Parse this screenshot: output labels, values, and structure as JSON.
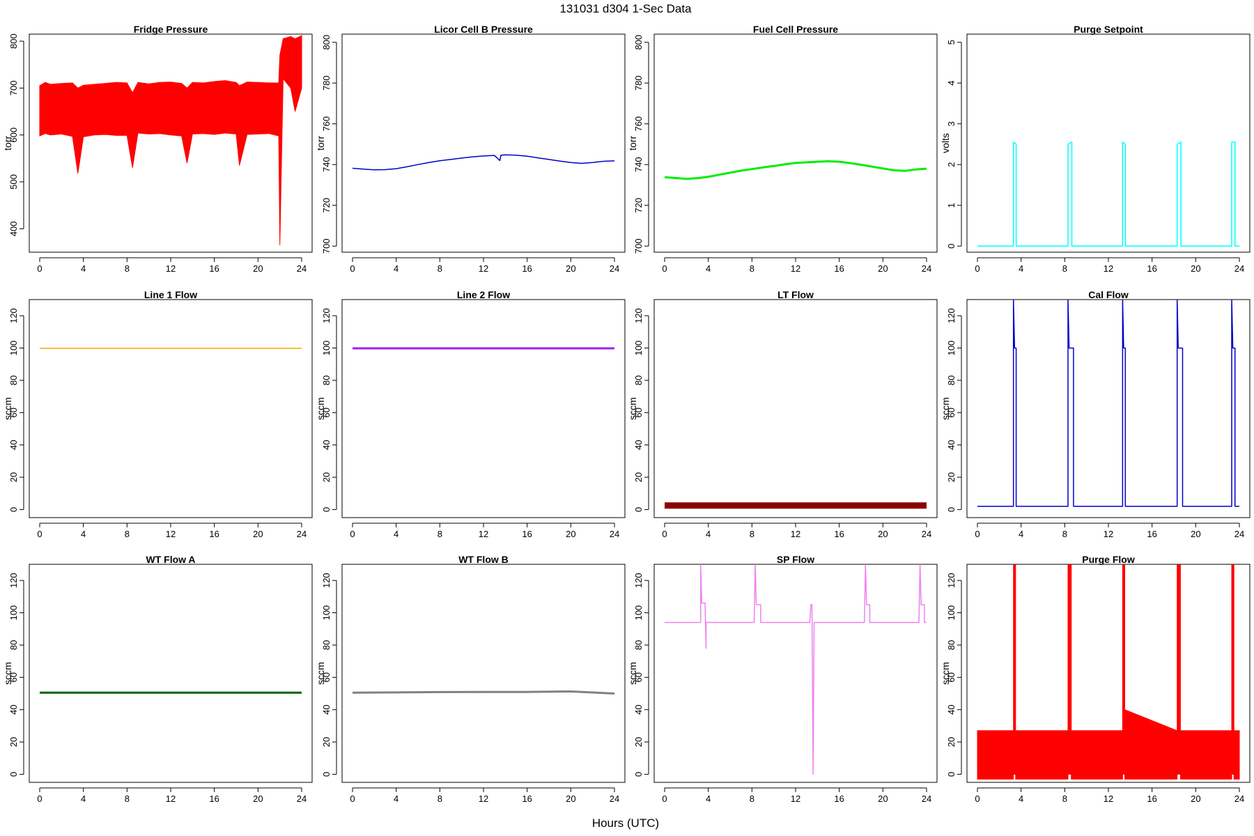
{
  "figure": {
    "title": "131031    d304    1-Sec Data",
    "xlabel": "Hours (UTC)"
  },
  "chart_data": [
    {
      "type": "line",
      "title": "Fridge Pressure",
      "ylabel": "torr",
      "color": "#ff0000",
      "xlim": [
        0,
        24
      ],
      "ylim": [
        350,
        815
      ],
      "xticks": [
        0,
        4,
        8,
        12,
        16,
        20,
        24
      ],
      "yticks": [
        400,
        500,
        600,
        700,
        800
      ],
      "x": [
        0,
        0.5,
        1,
        2,
        3,
        3.5,
        4,
        5,
        6,
        7,
        8,
        8.5,
        9,
        10,
        11,
        12,
        13,
        13.5,
        14,
        15,
        16,
        17,
        18,
        18.3,
        19,
        20,
        21,
        21.9,
        22.0,
        22.3,
        23,
        23.4,
        24
      ],
      "y": [
        598,
        603,
        600,
        602,
        597,
        518,
        596,
        600,
        601,
        599,
        599,
        530,
        604,
        602,
        603,
        600,
        598,
        540,
        602,
        603,
        601,
        604,
        602,
        535,
        601,
        602,
        603,
        598,
        365,
        720,
        700,
        650,
        700
      ],
      "y2": [
        705,
        712,
        708,
        710,
        711,
        700,
        706,
        708,
        710,
        712,
        711,
        690,
        712,
        709,
        712,
        713,
        710,
        700,
        712,
        711,
        714,
        716,
        712,
        705,
        713,
        712,
        711,
        711,
        770,
        805,
        810,
        805,
        812
      ]
    },
    {
      "type": "line",
      "title": "Licor Cell B Pressure",
      "ylabel": "torr",
      "color": "#0000cc",
      "xlim": [
        0,
        24
      ],
      "ylim": [
        697,
        804
      ],
      "xticks": [
        0,
        4,
        8,
        12,
        16,
        20,
        24
      ],
      "yticks": [
        700,
        720,
        740,
        760,
        780,
        800
      ],
      "x": [
        0,
        1,
        2,
        3,
        4,
        5,
        6,
        7,
        8,
        9,
        10,
        11,
        12,
        13,
        13.5,
        13.6,
        14,
        15,
        16,
        17,
        18,
        19,
        20,
        21,
        22,
        23,
        24
      ],
      "y": [
        738.2,
        737.8,
        737.4,
        737.5,
        738.0,
        738.9,
        740.0,
        741.0,
        741.9,
        742.5,
        743.2,
        743.8,
        744.2,
        744.5,
        742.0,
        744.6,
        744.8,
        744.6,
        744.1,
        743.3,
        742.5,
        741.7,
        741.0,
        740.6,
        741.0,
        741.6,
        741.8
      ]
    },
    {
      "type": "line",
      "title": "Fuel Cell Pressure",
      "ylabel": "torr",
      "color": "#00ee00",
      "xlim": [
        0,
        24
      ],
      "ylim": [
        697,
        804
      ],
      "xticks": [
        0,
        4,
        8,
        12,
        16,
        20,
        24
      ],
      "yticks": [
        700,
        720,
        740,
        760,
        780,
        800
      ],
      "x": [
        0,
        1,
        2,
        3,
        4,
        5,
        6,
        7,
        8,
        9,
        10,
        11,
        12,
        13,
        14,
        15,
        16,
        17,
        18,
        19,
        20,
        21,
        22,
        23,
        24
      ],
      "y": [
        733.8,
        733.4,
        733.0,
        733.3,
        734.0,
        735.0,
        736.0,
        737.0,
        737.8,
        738.6,
        739.3,
        740.1,
        740.8,
        741.1,
        741.4,
        741.6,
        741.4,
        740.7,
        739.9,
        739.0,
        738.1,
        737.2,
        736.9,
        737.6,
        738.0
      ]
    },
    {
      "type": "line",
      "title": "Purge Setpoint",
      "ylabel": "volts",
      "color": "#00ffff",
      "xlim": [
        0,
        24
      ],
      "ylim": [
        -0.15,
        5.2
      ],
      "xticks": [
        0,
        4,
        8,
        12,
        16,
        20,
        24
      ],
      "yticks": [
        0,
        1,
        2,
        3,
        4,
        5
      ],
      "x": [
        0,
        3.3,
        3.3,
        3.55,
        3.55,
        8.3,
        8.3,
        8.65,
        8.65,
        13.3,
        13.3,
        13.55,
        13.55,
        18.3,
        18.3,
        18.65,
        18.65,
        23.3,
        23.3,
        23.6,
        23.6,
        24
      ],
      "y": [
        0,
        0,
        2.55,
        2.5,
        0,
        0,
        2.5,
        2.55,
        0,
        0,
        2.55,
        2.5,
        0,
        0,
        2.5,
        2.55,
        0,
        0,
        2.55,
        2.55,
        0,
        0
      ]
    },
    {
      "type": "line",
      "title": "Line 1 Flow",
      "ylabel": "sccm",
      "color": "#ffa500",
      "xlim": [
        0,
        24
      ],
      "ylim": [
        -5,
        130
      ],
      "xticks": [
        0,
        4,
        8,
        12,
        16,
        20,
        24
      ],
      "yticks": [
        0,
        20,
        40,
        60,
        80,
        100,
        120
      ],
      "x": [
        0,
        24
      ],
      "y": [
        99.8,
        99.8
      ]
    },
    {
      "type": "line",
      "title": "Line 2 Flow",
      "ylabel": "sccm",
      "color": "#a020f0",
      "xlim": [
        0,
        24
      ],
      "ylim": [
        -5,
        130
      ],
      "xticks": [
        0,
        4,
        8,
        12,
        16,
        20,
        24
      ],
      "yticks": [
        0,
        20,
        40,
        60,
        80,
        100,
        120
      ],
      "x": [
        0,
        24
      ],
      "y": [
        99.8,
        99.8
      ]
    },
    {
      "type": "line",
      "title": "LT Flow",
      "ylabel": "sccm",
      "color": "#8b0000",
      "xlim": [
        0,
        24
      ],
      "ylim": [
        -5,
        130
      ],
      "xticks": [
        0,
        4,
        8,
        12,
        16,
        20,
        24
      ],
      "yticks": [
        0,
        20,
        40,
        60,
        80,
        100,
        120
      ],
      "x": [
        0,
        24
      ],
      "y": [
        2.5,
        2.5
      ]
    },
    {
      "type": "line",
      "title": "Cal Flow",
      "ylabel": "sccm",
      "color": "#0000cc",
      "xlim": [
        0,
        24
      ],
      "ylim": [
        -5,
        130
      ],
      "xticks": [
        0,
        4,
        8,
        12,
        16,
        20,
        24
      ],
      "yticks": [
        0,
        20,
        40,
        60,
        80,
        100,
        120
      ],
      "x": [
        0,
        3.3,
        3.3,
        3.4,
        3.4,
        3.55,
        3.55,
        8.3,
        8.3,
        8.4,
        8.4,
        8.8,
        8.8,
        13.3,
        13.3,
        13.4,
        13.4,
        13.55,
        13.55,
        18.3,
        18.3,
        18.4,
        18.4,
        18.8,
        18.8,
        23.3,
        23.3,
        23.4,
        23.4,
        23.6,
        23.6,
        24
      ],
      "y": [
        2,
        2,
        130,
        100,
        100,
        100,
        2,
        2,
        130,
        100,
        100,
        100,
        2,
        2,
        130,
        100,
        100,
        100,
        2,
        2,
        130,
        100,
        100,
        100,
        2,
        2,
        130,
        100,
        100,
        100,
        2,
        2
      ]
    },
    {
      "type": "line",
      "title": "WT Flow A",
      "ylabel": "sccm",
      "color": "#006400",
      "xlim": [
        0,
        24
      ],
      "ylim": [
        -5,
        130
      ],
      "xticks": [
        0,
        4,
        8,
        12,
        16,
        20,
        24
      ],
      "yticks": [
        0,
        20,
        40,
        60,
        80,
        100,
        120
      ],
      "x": [
        0,
        24
      ],
      "y": [
        50.5,
        50.5
      ]
    },
    {
      "type": "line",
      "title": "WT Flow B",
      "ylabel": "sccm",
      "color": "#808080",
      "xlim": [
        0,
        24
      ],
      "ylim": [
        -5,
        130
      ],
      "xticks": [
        0,
        4,
        8,
        12,
        16,
        20,
        24
      ],
      "yticks": [
        0,
        20,
        40,
        60,
        80,
        100,
        120
      ],
      "x": [
        0,
        4,
        8,
        12,
        16,
        20,
        24
      ],
      "y": [
        50.5,
        50.7,
        50.9,
        51.0,
        51.0,
        51.3,
        50.0
      ]
    },
    {
      "type": "line",
      "title": "SP Flow",
      "ylabel": "sccm",
      "color": "#ee82ee",
      "xlim": [
        0,
        24
      ],
      "ylim": [
        -5,
        130
      ],
      "xticks": [
        0,
        4,
        8,
        12,
        16,
        20,
        24
      ],
      "yticks": [
        0,
        20,
        40,
        60,
        80,
        100,
        120
      ],
      "x": [
        0,
        3.3,
        3.3,
        3.4,
        3.7,
        3.8,
        3.8,
        8.2,
        8.3,
        8.4,
        8.8,
        8.8,
        13.3,
        13.4,
        13.5,
        13.6,
        13.7,
        13.7,
        18.3,
        18.4,
        18.5,
        18.8,
        18.8,
        23.3,
        23.4,
        23.5,
        23.8,
        23.8,
        24
      ],
      "y": [
        94,
        94,
        130,
        106,
        106,
        78,
        94,
        94,
        130,
        105,
        105,
        94,
        94,
        105,
        105,
        0,
        94,
        94,
        94,
        130,
        105,
        105,
        94,
        94,
        130,
        105,
        105,
        94,
        94
      ]
    },
    {
      "type": "line",
      "title": "Purge Flow",
      "ylabel": "sccm",
      "color": "#ff0000",
      "xlim": [
        0,
        24
      ],
      "ylim": [
        -5,
        130
      ],
      "xticks": [
        0,
        4,
        8,
        12,
        16,
        20,
        24
      ],
      "yticks": [
        0,
        20,
        40,
        60,
        80,
        100,
        120
      ],
      "x": [
        0,
        3.3,
        3.3,
        3.5,
        3.5,
        8.3,
        8.3,
        8.6,
        8.6,
        13.3,
        13.3,
        13.5,
        13.5,
        18.3,
        18.3,
        18.6,
        18.6,
        23.3,
        23.3,
        23.5,
        23.5,
        24
      ],
      "y": [
        27,
        27,
        130,
        130,
        27,
        27,
        130,
        130,
        27,
        27,
        130,
        130,
        40,
        27,
        130,
        130,
        27,
        27,
        130,
        130,
        27,
        27
      ],
      "y2": [
        -3,
        -3,
        0,
        0,
        -3,
        -3,
        0,
        0,
        -3,
        -3,
        0,
        0,
        -3,
        -3,
        0,
        0,
        -3,
        -3,
        0,
        0,
        -3,
        -3
      ]
    }
  ]
}
